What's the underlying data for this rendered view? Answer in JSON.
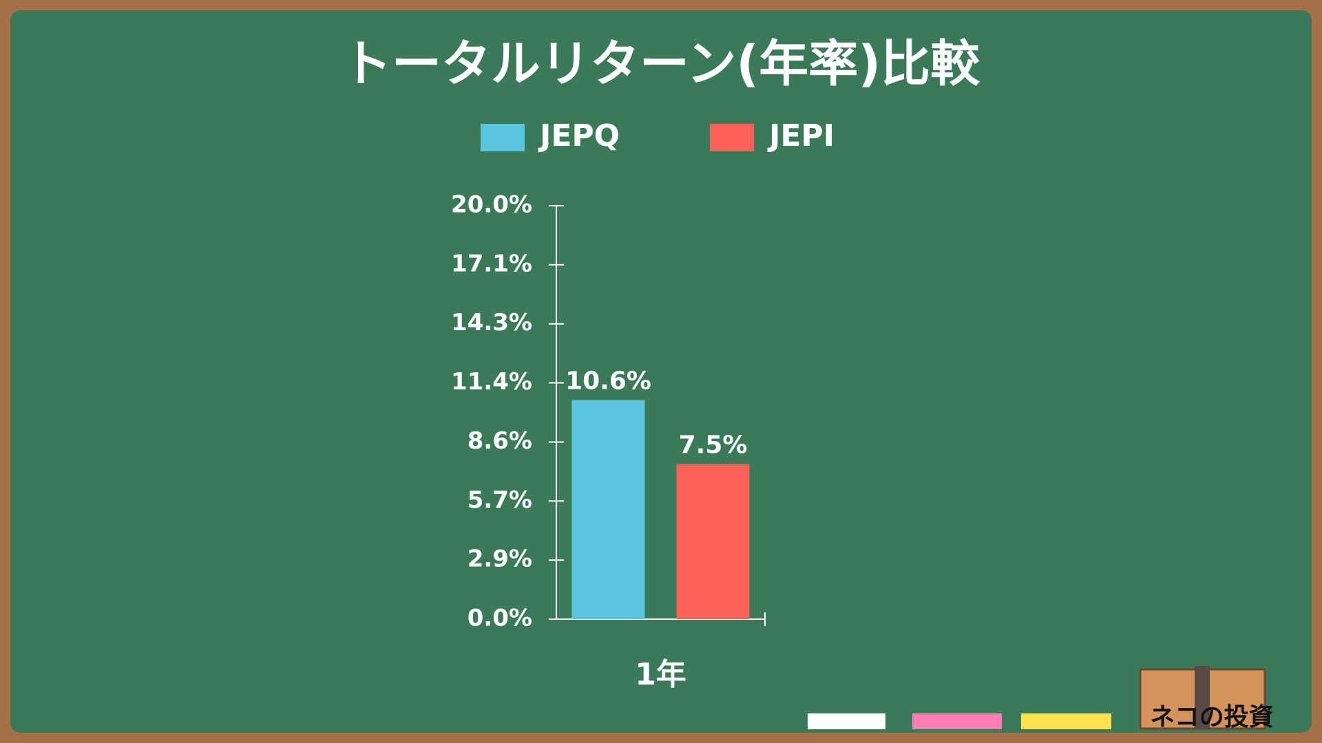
{
  "chart_data": {
    "type": "bar",
    "title": "トータルリターン(年率)比較",
    "categories": [
      "1年"
    ],
    "series": [
      {
        "name": "JEPQ",
        "color": "#5bc4e0",
        "values": [
          10.6
        ],
        "value_labels": [
          "10.6%"
        ]
      },
      {
        "name": "JEPI",
        "color": "#ff6158",
        "values": [
          7.5
        ],
        "value_labels": [
          "7.5%"
        ]
      }
    ],
    "ylim": [
      0,
      20
    ],
    "yticks": [
      {
        "value": 0,
        "label": "0.0%"
      },
      {
        "value": 2.857,
        "label": "2.9%"
      },
      {
        "value": 5.714,
        "label": "5.7%"
      },
      {
        "value": 8.571,
        "label": "8.6%"
      },
      {
        "value": 11.429,
        "label": "11.4%"
      },
      {
        "value": 14.286,
        "label": "14.3%"
      },
      {
        "value": 17.143,
        "label": "17.1%"
      },
      {
        "value": 20,
        "label": "20.0%"
      }
    ],
    "legend": "top"
  },
  "footer_logo": "ネコの投資"
}
